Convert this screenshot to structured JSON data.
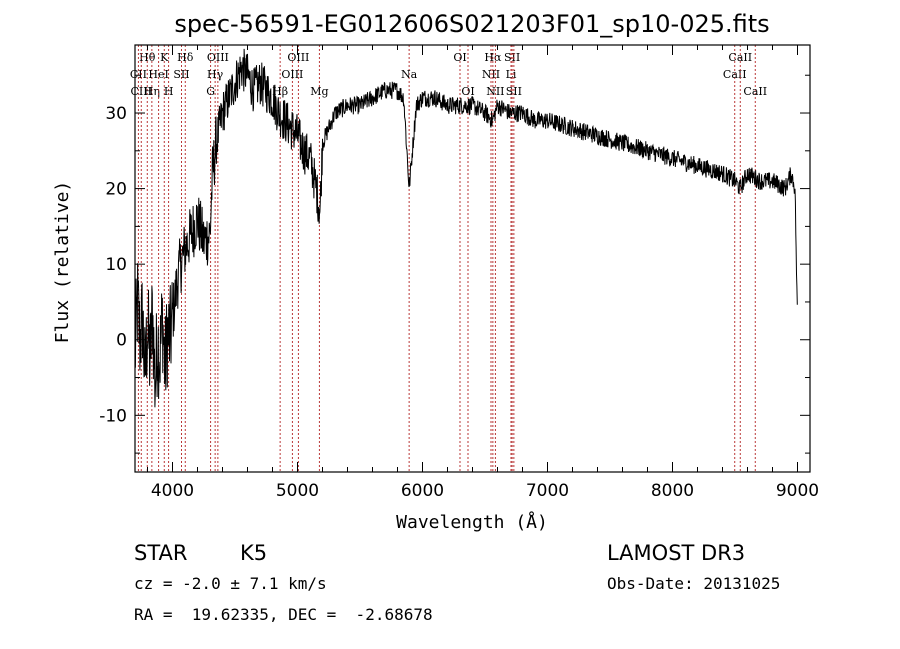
{
  "chart_data": {
    "type": "line",
    "title": "spec-56591-EG012606S021203F01_sp10-025.fits",
    "xlabel": "Wavelength (Å)",
    "ylabel": "Flux (relative)",
    "xlim": [
      3700,
      9100
    ],
    "ylim": [
      -17.5,
      39
    ],
    "xticks": [
      4000,
      5000,
      6000,
      7000,
      8000,
      9000
    ],
    "yticks": [
      -10,
      0,
      10,
      20,
      30
    ],
    "spectrum_anchors": {
      "x": [
        3700,
        3720,
        3740,
        3760,
        3780,
        3800,
        3820,
        3840,
        3860,
        3880,
        3900,
        3920,
        3940,
        3960,
        3980,
        4000,
        4050,
        4100,
        4150,
        4200,
        4250,
        4300,
        4320,
        4350,
        4400,
        4450,
        4500,
        4550,
        4600,
        4650,
        4700,
        4750,
        4800,
        4850,
        4900,
        4950,
        5000,
        5050,
        5100,
        5150,
        5180,
        5200,
        5300,
        5400,
        5500,
        5600,
        5700,
        5800,
        5850,
        5893,
        5950,
        6000,
        6100,
        6200,
        6300,
        6400,
        6500,
        6560,
        6600,
        6700,
        6800,
        6900,
        7000,
        7200,
        7400,
        7600,
        7800,
        8000,
        8200,
        8400,
        8500,
        8540,
        8600,
        8700,
        8800,
        8900,
        8950,
        8980,
        9000
      ],
      "y": [
        -2,
        5,
        0,
        3,
        -5,
        2,
        -3,
        4,
        -6,
        0,
        -2,
        3,
        -4,
        1,
        0,
        3,
        9,
        12,
        14,
        16,
        13,
        14,
        22,
        26,
        30,
        32,
        34,
        36,
        35,
        33,
        34,
        33,
        32,
        30,
        29,
        28,
        27,
        25,
        24,
        20,
        17,
        26,
        30,
        31,
        31,
        32,
        33,
        33,
        32,
        20,
        31,
        32,
        32,
        31,
        31,
        31,
        30,
        29,
        31,
        30,
        30,
        29,
        29,
        28,
        27,
        26,
        25,
        24,
        23,
        22,
        21,
        20,
        22,
        21,
        21,
        20,
        22,
        20,
        2
      ]
    },
    "noise_regions": [
      {
        "x_range": [
          3700,
          4000
        ],
        "amplitude": 7
      },
      {
        "x_range": [
          4000,
          4350
        ],
        "amplitude": 4
      },
      {
        "x_range": [
          4350,
          5200
        ],
        "amplitude": 3
      },
      {
        "x_range": [
          5200,
          9000
        ],
        "amplitude": 1.2
      }
    ],
    "spectral_lines": [
      {
        "labels": [
          "Hθ"
        ],
        "x": 3798,
        "row": 1
      },
      {
        "labels": [
          "CII"
        ],
        "x": 3727,
        "row": 2
      },
      {
        "labels": [
          "CIII"
        ],
        "x": 3750,
        "row": 3
      },
      {
        "labels": [
          "Hη"
        ],
        "x": 3835,
        "row": 3
      },
      {
        "labels": [
          "K"
        ],
        "x": 3934,
        "row": 1
      },
      {
        "labels": [
          "H"
        ],
        "x": 3969,
        "row": 3
      },
      {
        "labels": [
          "HeI"
        ],
        "x": 3889,
        "row": 2
      },
      {
        "labels": [
          "SII"
        ],
        "x": 4072,
        "row": 2
      },
      {
        "labels": [
          "Hδ"
        ],
        "x": 4102,
        "row": 1
      },
      {
        "labels": [
          "G"
        ],
        "x": 4305,
        "row": 3
      },
      {
        "labels": [
          "Hγ"
        ],
        "x": 4341,
        "row": 2
      },
      {
        "labels": [
          "OIII"
        ],
        "x": 4363,
        "row": 1
      },
      {
        "labels": [
          "Hβ"
        ],
        "x": 4861,
        "row": 3
      },
      {
        "labels": [
          "OIII"
        ],
        "x": 4959,
        "row": 2
      },
      {
        "labels": [
          "OIII"
        ],
        "x": 5007,
        "row": 1
      },
      {
        "labels": [
          "Mg"
        ],
        "x": 5175,
        "row": 3
      },
      {
        "labels": [
          "Na"
        ],
        "x": 5893,
        "row": 2
      },
      {
        "labels": [
          "OI"
        ],
        "x": 6300,
        "row": 1
      },
      {
        "labels": [
          "OI"
        ],
        "x": 6364,
        "row": 3
      },
      {
        "labels": [
          "NII"
        ],
        "x": 6548,
        "row": 2
      },
      {
        "labels": [
          "Hα"
        ],
        "x": 6563,
        "row": 1
      },
      {
        "labels": [
          "NII"
        ],
        "x": 6583,
        "row": 3
      },
      {
        "labels": [
          "Li"
        ],
        "x": 6708,
        "row": 2
      },
      {
        "labels": [
          "SII"
        ],
        "x": 6717,
        "row": 1
      },
      {
        "labels": [
          "SII"
        ],
        "x": 6731,
        "row": 3
      },
      {
        "labels": [
          "CaII"
        ],
        "x": 8498,
        "row": 2
      },
      {
        "labels": [
          "CaII"
        ],
        "x": 8542,
        "row": 1
      },
      {
        "labels": [
          "CaII"
        ],
        "x": 8662,
        "row": 3
      }
    ]
  },
  "info": {
    "class": "STAR",
    "subclass": "K5",
    "survey": "LAMOST DR3",
    "cz": "cz = -2.0 ± 7.1 km/s",
    "obs_date": "Obs-Date: 20131025",
    "coords": "RA =  19.62335, DEC =  -2.68678"
  },
  "colors": {
    "spectrum": "#000000",
    "line_marker": "#b22222",
    "axes": "#000000"
  }
}
